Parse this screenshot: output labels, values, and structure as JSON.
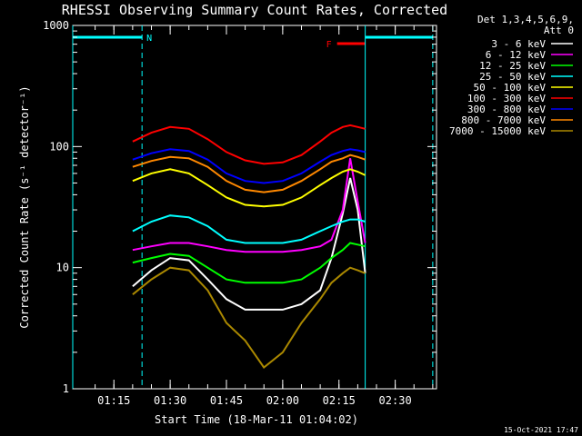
{
  "chart_data": {
    "type": "line",
    "title": "RHESSI Observing Summary Count Rates, Corrected",
    "xlabel": "Start Time (18-Mar-11 01:04:02)",
    "ylabel": "Corrected Count Rate (s⁻¹ detector⁻¹)",
    "yscale": "log",
    "ylim": [
      1,
      1000
    ],
    "xlim": [
      "01:04:02",
      "02:41:00"
    ],
    "y_ticks": [
      "1",
      "10",
      "100",
      "1000"
    ],
    "x_ticks": [
      "01:15",
      "01:30",
      "01:45",
      "02:00",
      "02:15",
      "02:30"
    ],
    "legend_header": [
      "Det 1,3,4,5,6,9,",
      "Att 0"
    ],
    "legend_position": "right",
    "footer": "15-Oct-2021 17:47",
    "annotations": [
      {
        "text": "N",
        "type": "night",
        "color": "#00ffff",
        "segments": [
          [
            "01:04:02",
            "01:22:30"
          ],
          [
            "02:22:00",
            "02:40:00"
          ]
        ]
      },
      {
        "text": "F",
        "type": "flare",
        "color": "#ff0000",
        "segments": [
          [
            "02:14:30",
            "02:22:00"
          ]
        ]
      }
    ],
    "markers_dashed": [
      "01:22:30",
      "02:40:00"
    ],
    "markers_solid": [
      "01:04:02",
      "02:22:00"
    ],
    "x": [
      "01:20",
      "01:25",
      "01:30",
      "01:35",
      "01:40",
      "01:45",
      "01:50",
      "01:55",
      "02:00",
      "02:05",
      "02:10",
      "02:13",
      "02:16",
      "02:18",
      "02:20",
      "02:22"
    ],
    "series": [
      {
        "name": "3 - 6 keV",
        "color": "#ffffff",
        "values": [
          7,
          9.5,
          12,
          11.5,
          8,
          5.5,
          4.5,
          4.5,
          4.5,
          5,
          6.5,
          12,
          28,
          55,
          30,
          9
        ]
      },
      {
        "name": "6 - 12 keV",
        "color": "#ff00ff",
        "values": [
          14,
          15,
          16,
          16,
          15,
          14,
          13.5,
          13.5,
          13.5,
          14,
          15,
          17,
          30,
          80,
          35,
          16
        ]
      },
      {
        "name": "12 - 25 keV",
        "color": "#00ff00",
        "values": [
          11,
          12,
          13,
          12.5,
          10,
          8,
          7.5,
          7.5,
          7.5,
          8,
          10,
          12,
          14,
          16,
          15.5,
          15
        ]
      },
      {
        "name": "25 - 50 keV",
        "color": "#00ffff",
        "values": [
          20,
          24,
          27,
          26,
          22,
          17,
          16,
          16,
          16,
          17,
          20,
          22,
          24,
          25,
          25,
          24
        ]
      },
      {
        "name": "50 - 100 keV",
        "color": "#ffff00",
        "values": [
          52,
          60,
          65,
          60,
          48,
          38,
          33,
          32,
          33,
          38,
          48,
          55,
          62,
          65,
          62,
          58
        ]
      },
      {
        "name": "100 - 300 keV",
        "color": "#ff0000",
        "values": [
          110,
          130,
          145,
          140,
          115,
          90,
          77,
          72,
          74,
          85,
          110,
          130,
          145,
          150,
          145,
          140
        ]
      },
      {
        "name": "300 - 800 keV",
        "color": "#0000ff",
        "values": [
          78,
          88,
          95,
          92,
          78,
          60,
          52,
          50,
          52,
          60,
          75,
          85,
          92,
          95,
          93,
          90
        ]
      },
      {
        "name": "800 - 7000 keV",
        "color": "#ff8800",
        "values": [
          68,
          76,
          82,
          80,
          68,
          52,
          44,
          42,
          44,
          52,
          65,
          75,
          80,
          85,
          82,
          78
        ]
      },
      {
        "name": "7000 - 15000 keV",
        "color": "#aa8800",
        "values": [
          6,
          8,
          10,
          9.5,
          6.5,
          3.5,
          2.5,
          1.5,
          2,
          3.5,
          5.5,
          7.5,
          9,
          10,
          9.5,
          9
        ]
      }
    ]
  }
}
